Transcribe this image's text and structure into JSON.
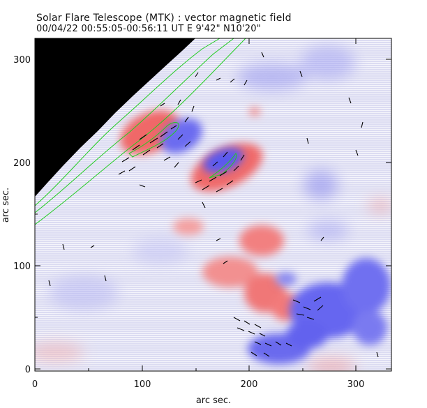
{
  "header": {
    "title": "Solar Flare Telescope (MTK) : vector magnetic field",
    "subtitle": "00/04/22   00:55:05-00:56:11 UT     E 9'42\"   N10'20\""
  },
  "axes": {
    "xlabel": "arc sec.",
    "ylabel": "arc sec.",
    "x_ticks": [
      "0",
      "100",
      "200",
      "300"
    ],
    "y_ticks": [
      "0",
      "100",
      "200",
      "300"
    ]
  },
  "colors": {
    "positive": "#f06b6b",
    "negative": "#6b6bf0",
    "contour": "#22cc22",
    "off_limb": "#000000"
  }
}
